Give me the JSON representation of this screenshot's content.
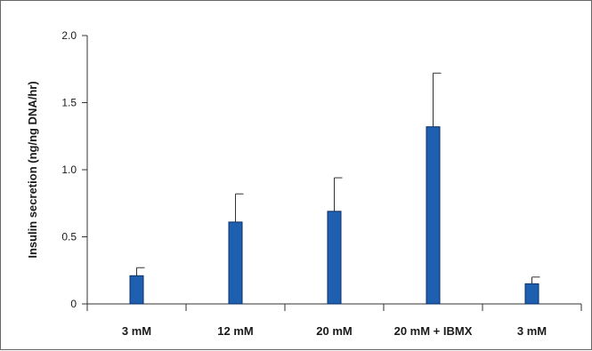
{
  "chart_data": {
    "type": "bar",
    "title": "",
    "xlabel": "",
    "ylabel": "Insulin secretion (ng/ng DNA/hr)",
    "categories": [
      "3 mM",
      "12 mM",
      "20 mM",
      "20 mM + IBMX",
      "3 mM"
    ],
    "values": [
      0.21,
      0.61,
      0.69,
      1.32,
      0.15
    ],
    "error_upper": [
      0.27,
      0.82,
      0.94,
      1.72,
      0.2
    ],
    "ylim": [
      0,
      2.0
    ],
    "yticks": [
      "0",
      "0.5",
      "1.0",
      "1.5",
      "2.0"
    ],
    "grid": false,
    "bar_color": "#1f5fb0",
    "bar_edge_color": "#0a2f66",
    "error_bar_style": "upper-only"
  }
}
